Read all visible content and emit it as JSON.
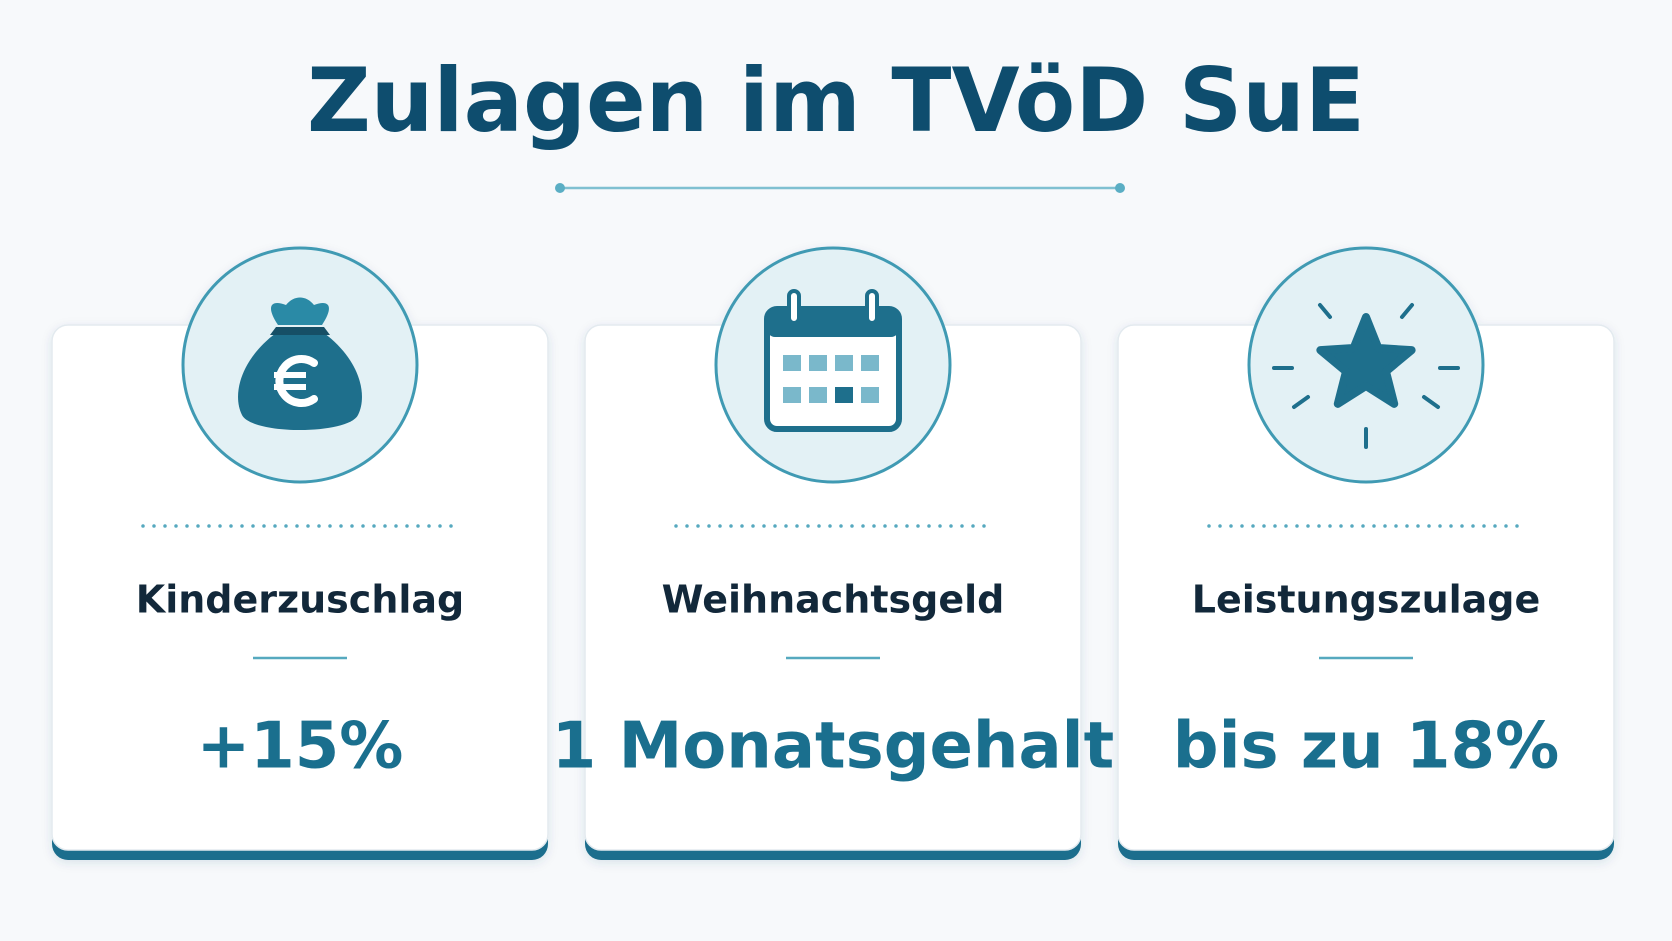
{
  "header": {
    "title": "Zulagen im TVöD SuE"
  },
  "cards": [
    {
      "label": "Kinderzuschlag",
      "value": "+15%"
    },
    {
      "label": "Weihnachtsgeld",
      "value": "1 Monatsgehalt"
    },
    {
      "label": "Leistungszulage",
      "value": "bis zu 18%"
    }
  ]
}
